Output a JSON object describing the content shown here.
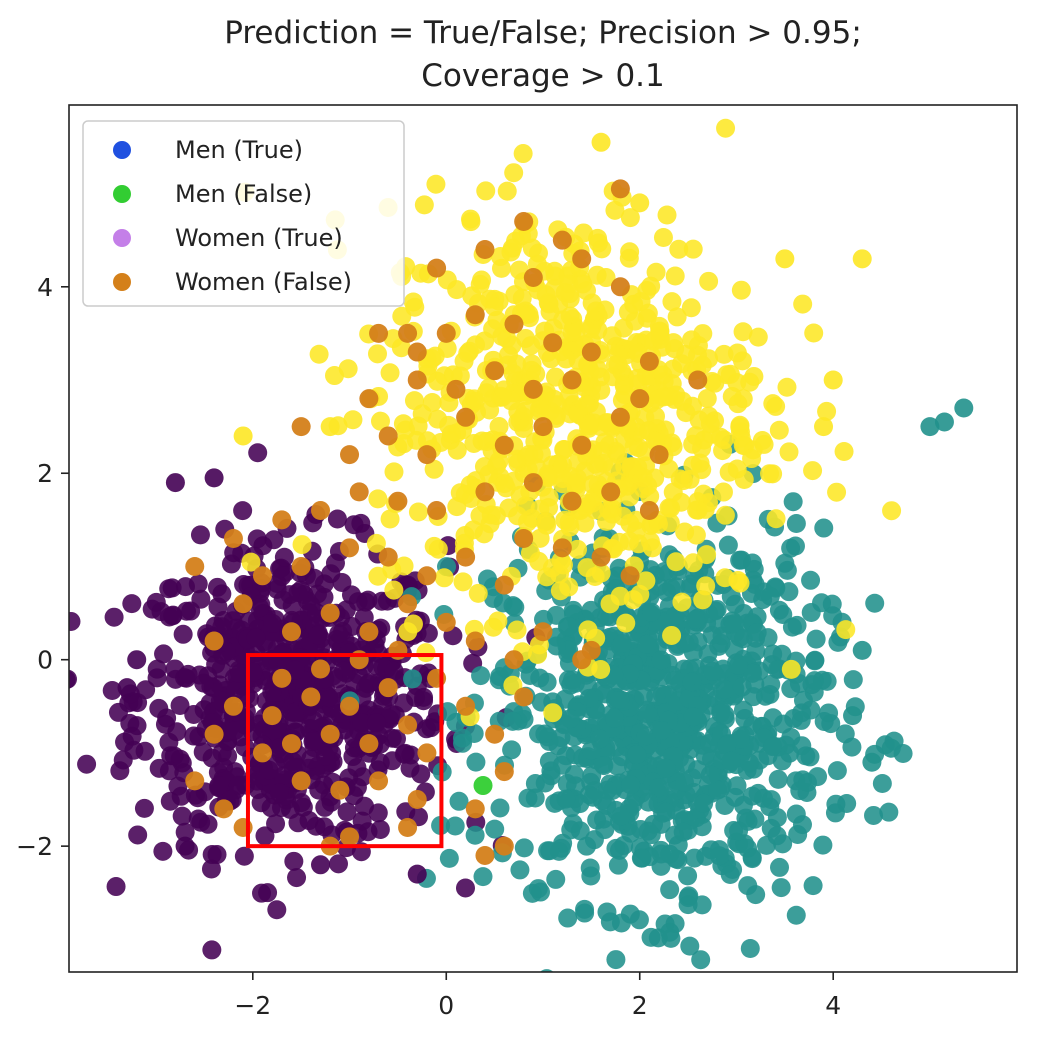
{
  "chart_data": {
    "type": "scatter",
    "title": "Prediction = True/False; Precision > 0.95;\nCoverage > 0.1",
    "title_lines": [
      "Prediction = True/False; Precision > 0.95;",
      "Coverage > 0.1"
    ],
    "xlabel": "",
    "ylabel": "",
    "xlim": [
      -3.9,
      5.9
    ],
    "ylim": [
      -3.35,
      5.95
    ],
    "x_ticks": [
      -2,
      0,
      2,
      4
    ],
    "y_ticks": [
      -2,
      0,
      2,
      4
    ],
    "x_tick_labels": [
      "−2",
      "0",
      "2",
      "4"
    ],
    "y_tick_labels": [
      "−2",
      "0",
      "2",
      "4"
    ],
    "grid": false,
    "legend": {
      "placement": "top-left",
      "entries": [
        {
          "label": "Men (True)",
          "color": "#1f50e0"
        },
        {
          "label": "Men (False)",
          "color": "#32cd32"
        },
        {
          "label": "Women (True)",
          "color": "#c47fe8"
        },
        {
          "label": "Women (False)",
          "color": "#d4801a"
        }
      ]
    },
    "clusters": [
      {
        "color": "#440154",
        "center": [
          -1.6,
          -0.4
        ],
        "spread": [
          0.8,
          0.8
        ],
        "count": 700
      },
      {
        "color": "#21918c",
        "center": [
          2.2,
          -0.6
        ],
        "spread": [
          0.85,
          1.0
        ],
        "count": 900
      },
      {
        "color": "#fde725",
        "center": [
          1.3,
          2.7
        ],
        "spread": [
          1.0,
          1.1
        ],
        "count": 700
      }
    ],
    "series": [
      {
        "name": "Women (False)",
        "color": "#d4801a",
        "points": [
          [
            -1.8,
            -0.6
          ],
          [
            -1.6,
            -0.9
          ],
          [
            -1.4,
            -0.4
          ],
          [
            -1.2,
            -0.8
          ],
          [
            -1.0,
            -0.5
          ],
          [
            -0.8,
            -0.9
          ],
          [
            -0.6,
            -0.3
          ],
          [
            -0.4,
            -0.7
          ],
          [
            -0.2,
            -1.0
          ],
          [
            -1.5,
            -1.3
          ],
          [
            -1.1,
            -1.4
          ],
          [
            -0.7,
            -1.3
          ],
          [
            -0.3,
            -1.5
          ],
          [
            -1.9,
            -1.0
          ],
          [
            -1.7,
            -0.2
          ],
          [
            -1.3,
            -0.1
          ],
          [
            -0.9,
            0.0
          ],
          [
            -0.5,
            0.1
          ],
          [
            -0.1,
            -0.2
          ],
          [
            0.2,
            -0.5
          ],
          [
            0.5,
            -0.8
          ],
          [
            0.8,
            -0.4
          ],
          [
            0.6,
            -1.2
          ],
          [
            0.3,
            -1.6
          ],
          [
            0.4,
            -2.1
          ],
          [
            0.6,
            -2.0
          ],
          [
            -2.2,
            -0.5
          ],
          [
            -2.4,
            -0.8
          ],
          [
            -2.6,
            -1.3
          ],
          [
            -2.3,
            -1.6
          ],
          [
            -2.1,
            -1.8
          ],
          [
            -1.0,
            -1.9
          ],
          [
            -1.2,
            -2.0
          ],
          [
            -0.4,
            -1.8
          ],
          [
            -1.6,
            0.3
          ],
          [
            -1.2,
            0.5
          ],
          [
            -0.8,
            0.3
          ],
          [
            -0.4,
            0.6
          ],
          [
            0.0,
            0.4
          ],
          [
            0.3,
            0.2
          ],
          [
            0.7,
            0.0
          ],
          [
            1.0,
            0.3
          ],
          [
            1.4,
            0.0
          ],
          [
            1.5,
            0.1
          ],
          [
            -2.4,
            0.2
          ],
          [
            -2.1,
            0.6
          ],
          [
            -1.9,
            0.9
          ],
          [
            -1.5,
            1.0
          ],
          [
            -1.0,
            1.2
          ],
          [
            -0.6,
            1.1
          ],
          [
            -0.2,
            0.9
          ],
          [
            0.2,
            1.1
          ],
          [
            0.6,
            0.8
          ],
          [
            0.8,
            1.3
          ],
          [
            1.2,
            1.2
          ],
          [
            1.6,
            1.1
          ],
          [
            1.9,
            0.9
          ],
          [
            -1.3,
            1.6
          ],
          [
            -0.9,
            1.8
          ],
          [
            -0.5,
            1.7
          ],
          [
            -0.1,
            1.6
          ],
          [
            0.4,
            1.8
          ],
          [
            0.9,
            1.9
          ],
          [
            1.3,
            1.7
          ],
          [
            1.7,
            1.8
          ],
          [
            2.1,
            1.6
          ],
          [
            -2.6,
            1.0
          ],
          [
            -2.2,
            1.3
          ],
          [
            -1.7,
            1.5
          ],
          [
            -1.5,
            2.5
          ],
          [
            -1.0,
            2.2
          ],
          [
            -0.6,
            2.4
          ],
          [
            -0.2,
            2.2
          ],
          [
            0.2,
            2.6
          ],
          [
            0.6,
            2.3
          ],
          [
            1.0,
            2.5
          ],
          [
            1.4,
            2.3
          ],
          [
            1.8,
            2.6
          ],
          [
            -0.8,
            2.8
          ],
          [
            -0.3,
            3.0
          ],
          [
            0.1,
            2.9
          ],
          [
            0.5,
            3.1
          ],
          [
            0.9,
            2.9
          ],
          [
            1.3,
            3.0
          ],
          [
            2.2,
            2.2
          ],
          [
            2.6,
            3.0
          ],
          [
            -0.4,
            3.5
          ],
          [
            0.0,
            3.5
          ],
          [
            0.3,
            3.7
          ],
          [
            0.7,
            3.6
          ],
          [
            1.1,
            3.4
          ],
          [
            1.5,
            3.3
          ],
          [
            1.8,
            4.0
          ],
          [
            1.4,
            4.3
          ],
          [
            0.9,
            4.1
          ],
          [
            0.4,
            4.4
          ],
          [
            -0.1,
            4.2
          ],
          [
            -0.3,
            3.3
          ],
          [
            -0.7,
            3.5
          ],
          [
            0.8,
            4.7
          ],
          [
            1.2,
            4.5
          ],
          [
            1.8,
            5.05
          ],
          [
            2.1,
            3.2
          ],
          [
            2.0,
            2.8
          ]
        ]
      },
      {
        "name": "Men (False)",
        "color": "#32cd32",
        "points": [
          [
            0.38,
            -1.35
          ]
        ]
      }
    ],
    "outliers": [
      {
        "color": "#21918c",
        "points": [
          [
            5.0,
            2.5
          ],
          [
            5.15,
            2.55
          ],
          [
            5.35,
            2.7
          ],
          [
            4.6,
            -0.95
          ],
          [
            4.3,
            0.1
          ],
          [
            4.2,
            -0.6
          ],
          [
            4.4,
            -1.1
          ]
        ]
      },
      {
        "color": "#fde725",
        "points": [
          [
            4.3,
            4.3
          ],
          [
            3.5,
            4.3
          ],
          [
            1.6,
            5.55
          ],
          [
            2.0,
            4.9
          ],
          [
            -2.1,
            2.4
          ],
          [
            -1.2,
            2.5
          ],
          [
            4.0,
            3.0
          ],
          [
            3.9,
            2.5
          ]
        ]
      },
      {
        "color": "#440154",
        "points": [
          [
            -2.8,
            1.9
          ],
          [
            -2.4,
            1.95
          ],
          [
            -3.3,
            -0.3
          ],
          [
            -3.2,
            0.0
          ],
          [
            -2.7,
            -2.0
          ],
          [
            -1.3,
            -2.2
          ],
          [
            -0.3,
            -2.3
          ]
        ]
      }
    ],
    "annotations": [
      {
        "type": "rectangle",
        "color": "#ff0000",
        "x": [
          -2.05,
          -0.05
        ],
        "y": [
          -2.0,
          0.05
        ]
      }
    ]
  }
}
